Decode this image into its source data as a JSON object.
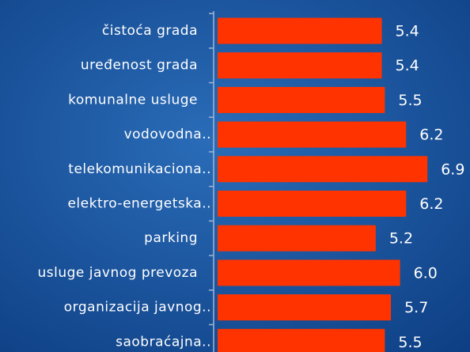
{
  "chart_data": {
    "type": "bar",
    "orientation": "horizontal",
    "categories": [
      "čistoća grada",
      "uređenost grada",
      "komunalne usluge",
      "vodovodna..",
      "telekomunikaciona..",
      "elektro-energetska..",
      "parking",
      "usluge javnog prevoza",
      "organizacija javnog..",
      "saobraćajna.."
    ],
    "values": [
      5.4,
      5.4,
      5.5,
      6.2,
      6.9,
      6.2,
      5.2,
      6,
      5.7,
      5.5
    ],
    "value_labels": [
      "5.4",
      "5.4",
      "5.5",
      "6.2",
      "6.9",
      "6.2",
      "5.2",
      "6.0",
      "5.7",
      "5.5"
    ],
    "color": "#ff3300",
    "xlim": [
      0,
      8.3
    ]
  }
}
